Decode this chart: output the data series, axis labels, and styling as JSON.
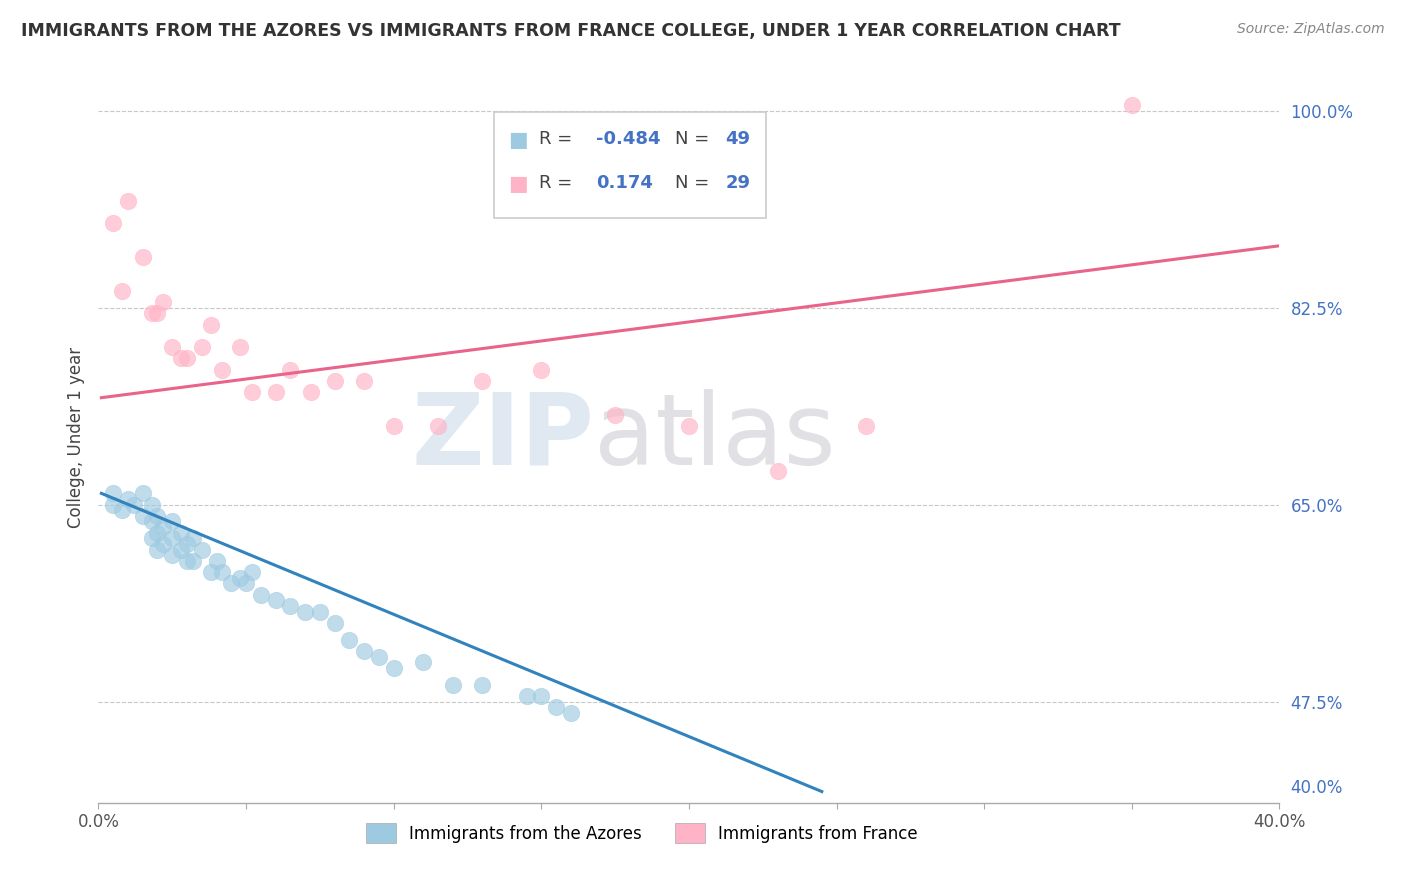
{
  "title": "IMMIGRANTS FROM THE AZORES VS IMMIGRANTS FROM FRANCE COLLEGE, UNDER 1 YEAR CORRELATION CHART",
  "source": "Source: ZipAtlas.com",
  "ylabel": "College, Under 1 year",
  "legend_label1": "Immigrants from the Azores",
  "legend_label2": "Immigrants from France",
  "R1": -0.484,
  "N1": 49,
  "R2": 0.174,
  "N2": 29,
  "xlim": [
    0.0,
    0.4
  ],
  "ylim": [
    0.385,
    1.035
  ],
  "xtick_positions": [
    0.0,
    0.05,
    0.1,
    0.15,
    0.2,
    0.25,
    0.3,
    0.35,
    0.4
  ],
  "xtick_labels": [
    "0.0%",
    "",
    "",
    "",
    "",
    "",
    "",
    "",
    "40.0%"
  ],
  "yticks_right": [
    1.0,
    0.825,
    0.65,
    0.475
  ],
  "ytick_labels_right": [
    "100.0%",
    "82.5%",
    "65.0%",
    "47.5%"
  ],
  "ytick_right_last": 0.4,
  "ytick_right_last_label": "40.0%",
  "color_blue": "#9ecae1",
  "color_pink": "#ffb3c6",
  "color_line_blue": "#3182bd",
  "color_line_pink": "#e8648a",
  "watermark_zip": "ZIP",
  "watermark_atlas": "atlas",
  "blue_dots_x": [
    0.005,
    0.005,
    0.008,
    0.01,
    0.012,
    0.015,
    0.015,
    0.018,
    0.018,
    0.018,
    0.02,
    0.02,
    0.02,
    0.022,
    0.022,
    0.025,
    0.025,
    0.025,
    0.028,
    0.028,
    0.03,
    0.03,
    0.032,
    0.032,
    0.035,
    0.038,
    0.04,
    0.042,
    0.045,
    0.048,
    0.05,
    0.052,
    0.055,
    0.06,
    0.065,
    0.07,
    0.075,
    0.08,
    0.085,
    0.09,
    0.095,
    0.1,
    0.11,
    0.12,
    0.13,
    0.145,
    0.15,
    0.155,
    0.16
  ],
  "blue_dots_y": [
    0.65,
    0.66,
    0.645,
    0.655,
    0.65,
    0.64,
    0.66,
    0.62,
    0.635,
    0.65,
    0.61,
    0.625,
    0.64,
    0.615,
    0.63,
    0.605,
    0.62,
    0.635,
    0.61,
    0.625,
    0.6,
    0.615,
    0.6,
    0.62,
    0.61,
    0.59,
    0.6,
    0.59,
    0.58,
    0.585,
    0.58,
    0.59,
    0.57,
    0.565,
    0.56,
    0.555,
    0.555,
    0.545,
    0.53,
    0.52,
    0.515,
    0.505,
    0.51,
    0.49,
    0.49,
    0.48,
    0.48,
    0.47,
    0.465
  ],
  "pink_dots_x": [
    0.005,
    0.008,
    0.01,
    0.015,
    0.018,
    0.02,
    0.022,
    0.025,
    0.028,
    0.03,
    0.035,
    0.038,
    0.042,
    0.048,
    0.052,
    0.06,
    0.065,
    0.072,
    0.08,
    0.09,
    0.1,
    0.115,
    0.13,
    0.15,
    0.175,
    0.2,
    0.23,
    0.26,
    0.35
  ],
  "pink_dots_y": [
    0.9,
    0.84,
    0.92,
    0.87,
    0.82,
    0.82,
    0.83,
    0.79,
    0.78,
    0.78,
    0.79,
    0.81,
    0.77,
    0.79,
    0.75,
    0.75,
    0.77,
    0.75,
    0.76,
    0.76,
    0.72,
    0.72,
    0.76,
    0.77,
    0.73,
    0.72,
    0.68,
    0.72,
    1.005
  ],
  "blue_trend_x": [
    0.001,
    0.245
  ],
  "blue_trend_y": [
    0.66,
    0.395
  ],
  "pink_trend_x": [
    0.001,
    0.4
  ],
  "pink_trend_y": [
    0.745,
    0.88
  ],
  "background_color": "#ffffff",
  "grid_color": "#c8c8c8"
}
